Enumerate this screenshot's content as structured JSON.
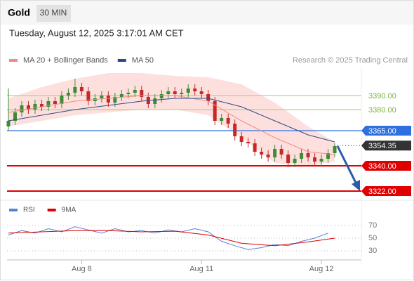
{
  "header": {
    "title": "Gold",
    "interval": "30 MIN",
    "timestamp": "Tuesday, August 12, 2025 3:17:01 AM CET",
    "credit": "Research © 2025 Trading Central"
  },
  "chart_data": [
    {
      "type": "candlestick",
      "categories": [
        null,
        null,
        null,
        null,
        null,
        null,
        null,
        null,
        null,
        null,
        null,
        null,
        null,
        null,
        null,
        null,
        null,
        null,
        null,
        null,
        null,
        null,
        null,
        null,
        null,
        null,
        null,
        null,
        null,
        null,
        null,
        null,
        null,
        null,
        null,
        null,
        null,
        null,
        null,
        null,
        null,
        null,
        null,
        null,
        null,
        null,
        null,
        null,
        null,
        null
      ],
      "xlim": [
        0,
        53
      ],
      "open": [
        3368,
        3372,
        3378,
        3383,
        3380,
        3384,
        3382,
        3386,
        3384,
        3390,
        3392,
        3396,
        3393,
        3386,
        3388,
        3390,
        3385,
        3389,
        3391,
        3392,
        3394,
        3389,
        3384,
        3388,
        3391,
        3393,
        3391,
        3392,
        3395,
        3393,
        3391,
        3386,
        3372,
        3374,
        3370,
        3361,
        3357,
        3356,
        3350,
        3348,
        3346,
        3352,
        3348,
        3342,
        3345,
        3349,
        3346,
        3343,
        3345,
        3349
      ],
      "high": [
        3395,
        3381,
        3386,
        3386,
        3387,
        3387,
        3389,
        3389,
        3393,
        3395,
        3402,
        3399,
        3396,
        3391,
        3393,
        3393,
        3392,
        3394,
        3395,
        3397,
        3397,
        3392,
        3391,
        3394,
        3396,
        3396,
        3395,
        3398,
        3398,
        3396,
        3394,
        3389,
        3377,
        3377,
        3373,
        3364,
        3360,
        3359,
        3353,
        3351,
        3355,
        3355,
        3351,
        3348,
        3352,
        3352,
        3349,
        3348,
        3352,
        3356
      ],
      "low": [
        3365,
        3369,
        3375,
        3377,
        3377,
        3379,
        3379,
        3381,
        3381,
        3387,
        3389,
        3390,
        3383,
        3383,
        3385,
        3382,
        3382,
        3386,
        3388,
        3389,
        3386,
        3381,
        3381,
        3385,
        3388,
        3388,
        3388,
        3389,
        3390,
        3388,
        3383,
        3369,
        3369,
        3367,
        3358,
        3354,
        3353,
        3347,
        3345,
        3343,
        3343,
        3345,
        3339,
        3339,
        3342,
        3343,
        3340,
        3340,
        3342,
        3346
      ],
      "close": [
        3372,
        3378,
        3383,
        3380,
        3384,
        3382,
        3386,
        3384,
        3390,
        3392,
        3396,
        3393,
        3386,
        3388,
        3390,
        3385,
        3389,
        3391,
        3392,
        3394,
        3389,
        3384,
        3388,
        3391,
        3393,
        3391,
        3392,
        3395,
        3393,
        3391,
        3386,
        3372,
        3374,
        3370,
        3361,
        3357,
        3356,
        3350,
        3348,
        3346,
        3352,
        3348,
        3342,
        3345,
        3349,
        3346,
        3343,
        3345,
        3349,
        3354
      ],
      "up_color": "#3d8b37",
      "down_color": "#c62828",
      "series": [
        {
          "name": "MA 20 + Bollinger Bands",
          "color": "#f28b82",
          "band_color": "#fde0dd",
          "x": [
            0,
            5,
            10,
            15,
            20,
            25,
            30,
            35,
            40,
            45,
            49
          ],
          "values": [
            3378,
            3382,
            3386,
            3388,
            3390,
            3390,
            3386,
            3372,
            3360,
            3350,
            3348
          ],
          "upper": [
            3388,
            3396,
            3402,
            3406,
            3406,
            3404,
            3403,
            3398,
            3385,
            3368,
            3357
          ],
          "lower": [
            3368,
            3372,
            3376,
            3378,
            3380,
            3380,
            3376,
            3360,
            3342,
            3340,
            3343
          ]
        },
        {
          "name": "MA 50",
          "color": "#2c4a8a",
          "x": [
            0,
            5,
            10,
            15,
            20,
            25,
            30,
            35,
            40,
            45,
            49
          ],
          "values": [
            3372,
            3376,
            3380,
            3383,
            3386,
            3388,
            3388,
            3382,
            3372,
            3362,
            3357
          ]
        }
      ],
      "levels": [
        {
          "value": 3390,
          "label": "3390.00",
          "color": "#b5d38a",
          "style": "text"
        },
        {
          "value": 3380,
          "label": "3380.00",
          "color": "#b5d38a",
          "style": "text"
        },
        {
          "value": 3365,
          "label": "3365.00",
          "color": "#2f6fe0",
          "style": "box"
        },
        {
          "value": 3354.35,
          "label": "3354.35",
          "color": "#333333",
          "style": "current"
        },
        {
          "value": 3340,
          "label": "3340.00",
          "color": "#e00000",
          "style": "box"
        },
        {
          "value": 3322,
          "label": "3322.00",
          "color": "#e00000",
          "style": "box"
        }
      ],
      "ylim": [
        3316,
        3411
      ]
    },
    {
      "type": "line",
      "xlim": [
        0,
        53
      ],
      "xticks": [
        {
          "value": 11,
          "label": "Aug 8"
        },
        {
          "value": 29,
          "label": "Aug 11"
        },
        {
          "value": 47,
          "label": "Aug 12"
        }
      ],
      "ylim": [
        15,
        82
      ],
      "yticks": [
        70,
        50,
        30
      ],
      "series": [
        {
          "name": "RSI",
          "color": "#5b7fd6",
          "x": [
            0,
            2,
            4,
            6,
            8,
            10,
            12,
            14,
            16,
            18,
            20,
            22,
            24,
            26,
            28,
            30,
            32,
            34,
            36,
            38,
            40,
            42,
            44,
            46,
            48
          ],
          "values": [
            55,
            62,
            58,
            65,
            60,
            68,
            63,
            58,
            65,
            60,
            62,
            58,
            63,
            60,
            65,
            60,
            45,
            38,
            32,
            35,
            40,
            38,
            45,
            50,
            58
          ]
        },
        {
          "name": "9MA",
          "color": "#e00000",
          "x": [
            0,
            5,
            10,
            15,
            20,
            25,
            30,
            35,
            40,
            45,
            49
          ],
          "values": [
            58,
            60,
            62,
            62,
            60,
            61,
            55,
            42,
            38,
            44,
            50
          ]
        }
      ]
    }
  ]
}
